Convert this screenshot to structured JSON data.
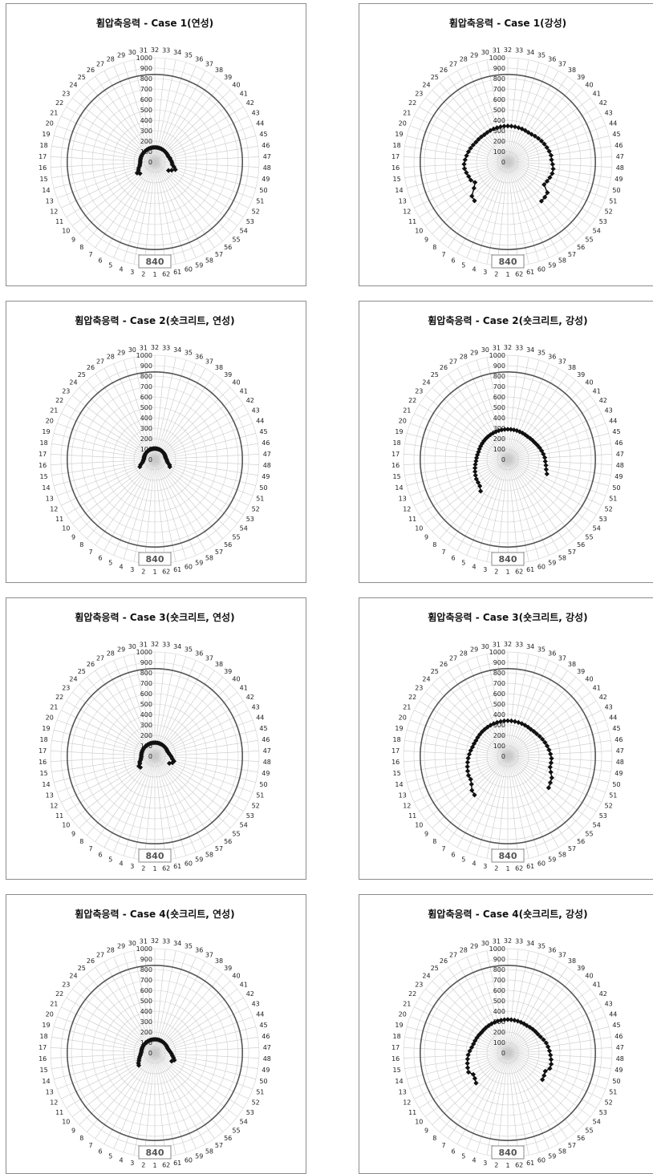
{
  "chart_data": [
    {
      "type": "radar",
      "title": "휨압축응력 - Case 1(연성)",
      "categories": [
        "1",
        "2",
        "3",
        "4",
        "5",
        "6",
        "7",
        "8",
        "9",
        "10",
        "11",
        "12",
        "13",
        "14",
        "15",
        "16",
        "17",
        "18",
        "19",
        "20",
        "21",
        "22",
        "23",
        "24",
        "25",
        "26",
        "27",
        "28",
        "29",
        "30",
        "31",
        "32",
        "33",
        "34",
        "35",
        "36",
        "37",
        "38",
        "39",
        "40",
        "41",
        "42",
        "43",
        "44",
        "45",
        "46",
        "47",
        "48",
        "49",
        "50",
        "51",
        "52",
        "53",
        "54",
        "55",
        "56",
        "57",
        "58",
        "59",
        "60",
        "61",
        "62"
      ],
      "ticks": [
        0,
        100,
        200,
        300,
        400,
        500,
        600,
        700,
        800,
        900,
        1000
      ],
      "rlim": [
        0,
        1000
      ],
      "limit_value": 840,
      "limit_label": "840",
      "values": [
        null,
        null,
        null,
        null,
        null,
        null,
        null,
        null,
        null,
        180,
        200,
        175,
        165,
        150,
        145,
        140,
        140,
        140,
        140,
        140,
        140,
        140,
        140,
        140,
        140,
        140,
        140,
        140,
        140,
        140,
        140,
        140,
        140,
        140,
        140,
        140,
        140,
        140,
        140,
        140,
        140,
        140,
        140,
        140,
        150,
        150,
        160,
        165,
        170,
        190,
        210,
        180,
        155,
        null,
        null,
        null,
        null,
        null,
        null,
        null,
        null,
        null
      ]
    },
    {
      "type": "radar",
      "title": "휨압축응력 - Case 1(강성)",
      "categories": [
        "1",
        "2",
        "3",
        "4",
        "5",
        "6",
        "7",
        "8",
        "9",
        "10",
        "11",
        "12",
        "13",
        "14",
        "15",
        "16",
        "17",
        "18",
        "19",
        "20",
        "21",
        "22",
        "23",
        "24",
        "25",
        "26",
        "27",
        "28",
        "29",
        "30",
        "31",
        "32",
        "33",
        "34",
        "35",
        "36",
        "37",
        "38",
        "39",
        "40",
        "41",
        "42",
        "43",
        "44",
        "45",
        "46",
        "47",
        "48",
        "49",
        "50",
        "51",
        "52",
        "53",
        "54",
        "55",
        "56",
        "57",
        "58",
        "59",
        "60",
        "61",
        "62"
      ],
      "ticks": [
        0,
        100,
        200,
        300,
        400,
        500,
        600,
        700,
        800,
        900,
        1000
      ],
      "rlim": [
        0,
        1000
      ],
      "limit_value": 840,
      "limit_label": "840",
      "values": [
        null,
        null,
        null,
        null,
        null,
        null,
        null,
        490,
        475,
        410,
        370,
        395,
        400,
        410,
        420,
        420,
        410,
        400,
        390,
        380,
        370,
        360,
        355,
        350,
        345,
        345,
        345,
        345,
        345,
        345,
        345,
        345,
        345,
        345,
        345,
        345,
        345,
        345,
        350,
        360,
        370,
        380,
        390,
        400,
        410,
        420,
        420,
        430,
        440,
        440,
        430,
        420,
        410,
        480,
        490,
        495,
        null,
        null,
        null,
        null,
        null,
        null
      ]
    },
    {
      "type": "radar",
      "title": "휨압축응력 - Case 2(숏크리트, 연성)",
      "categories": [
        "1",
        "2",
        "3",
        "4",
        "5",
        "6",
        "7",
        "8",
        "9",
        "10",
        "11",
        "12",
        "13",
        "14",
        "15",
        "16",
        "17",
        "18",
        "19",
        "20",
        "21",
        "22",
        "23",
        "24",
        "25",
        "26",
        "27",
        "28",
        "29",
        "30",
        "31",
        "32",
        "33",
        "34",
        "35",
        "36",
        "37",
        "38",
        "39",
        "40",
        "41",
        "42",
        "43",
        "44",
        "45",
        "46",
        "47",
        "48",
        "49",
        "50",
        "51",
        "52",
        "53",
        "54",
        "55",
        "56",
        "57",
        "58",
        "59",
        "60",
        "61",
        "62"
      ],
      "ticks": [
        0,
        100,
        200,
        300,
        400,
        500,
        600,
        700,
        800,
        900,
        1000
      ],
      "rlim": [
        0,
        1000
      ],
      "limit_value": 840,
      "limit_label": "840",
      "values": [
        null,
        null,
        null,
        null,
        null,
        null,
        null,
        null,
        null,
        null,
        null,
        160,
        145,
        125,
        115,
        110,
        105,
        105,
        105,
        105,
        105,
        105,
        105,
        105,
        105,
        105,
        105,
        105,
        105,
        105,
        105,
        105,
        105,
        105,
        105,
        105,
        105,
        105,
        105,
        105,
        105,
        105,
        105,
        105,
        105,
        105,
        110,
        115,
        120,
        130,
        150,
        160,
        null,
        null,
        null,
        null,
        null,
        null,
        null,
        null,
        null,
        null
      ]
    },
    {
      "type": "radar",
      "title": "휨압축응력 - Case 2(숏크리트, 강성)",
      "categories": [
        "1",
        "2",
        "3",
        "4",
        "5",
        "6",
        "7",
        "8",
        "9",
        "10",
        "11",
        "12",
        "13",
        "14",
        "15",
        "16",
        "17",
        "18",
        "19",
        "20",
        "21",
        "22",
        "23",
        "24",
        "25",
        "26",
        "27",
        "28",
        "29",
        "30",
        "31",
        "32",
        "33",
        "34",
        "35",
        "36",
        "37",
        "38",
        "39",
        "40",
        "41",
        "42",
        "43",
        "44",
        "45",
        "46",
        "47",
        "48",
        "49",
        "50",
        "51",
        "52",
        "53",
        "54",
        "55",
        "56",
        "57",
        "58",
        "59",
        "60",
        "61",
        "62"
      ],
      "ticks": [
        0,
        100,
        200,
        300,
        400,
        500,
        600,
        700,
        800,
        900,
        1000
      ],
      "rlim": [
        0,
        1000
      ],
      "limit_value": 840,
      "limit_label": "840",
      "values": [
        null,
        null,
        null,
        null,
        null,
        null,
        null,
        400,
        370,
        360,
        355,
        345,
        335,
        325,
        315,
        305,
        300,
        295,
        290,
        290,
        290,
        290,
        290,
        290,
        290,
        290,
        290,
        290,
        290,
        290,
        290,
        290,
        290,
        290,
        290,
        290,
        290,
        290,
        290,
        295,
        300,
        305,
        315,
        325,
        335,
        345,
        355,
        360,
        370,
        380,
        400,
        null,
        null,
        null,
        null,
        null,
        null,
        null,
        null,
        null,
        null,
        null
      ]
    },
    {
      "type": "radar",
      "title": "휨압축응력 - Case 3(숏크리트, 연성)",
      "categories": [
        "1",
        "2",
        "3",
        "4",
        "5",
        "6",
        "7",
        "8",
        "9",
        "10",
        "11",
        "12",
        "13",
        "14",
        "15",
        "16",
        "17",
        "18",
        "19",
        "20",
        "21",
        "22",
        "23",
        "24",
        "25",
        "26",
        "27",
        "28",
        "29",
        "30",
        "31",
        "32",
        "33",
        "34",
        "35",
        "36",
        "37",
        "38",
        "39",
        "40",
        "41",
        "42",
        "43",
        "44",
        "45",
        "46",
        "47",
        "48",
        "49",
        "50",
        "51",
        "52",
        "53",
        "54",
        "55",
        "56",
        "57",
        "58",
        "59",
        "60",
        "61",
        "62"
      ],
      "ticks": [
        0,
        100,
        200,
        300,
        400,
        500,
        600,
        700,
        800,
        900,
        1000
      ],
      "rlim": [
        0,
        1000
      ],
      "limit_value": 840,
      "limit_label": "840",
      "values": [
        null,
        null,
        null,
        null,
        null,
        null,
        null,
        null,
        null,
        175,
        180,
        160,
        155,
        140,
        135,
        130,
        130,
        130,
        130,
        130,
        130,
        130,
        130,
        130,
        130,
        130,
        130,
        130,
        130,
        130,
        130,
        130,
        130,
        130,
        130,
        130,
        130,
        130,
        130,
        130,
        130,
        130,
        130,
        130,
        135,
        140,
        150,
        160,
        170,
        190,
        180,
        155,
        null,
        null,
        null,
        null,
        null,
        null,
        null,
        null,
        null,
        null
      ]
    },
    {
      "type": "radar",
      "title": "휨압축응력 - Case 3(숏크리트, 강성)",
      "categories": [
        "1",
        "2",
        "3",
        "4",
        "5",
        "6",
        "7",
        "8",
        "9",
        "10",
        "11",
        "12",
        "13",
        "14",
        "15",
        "16",
        "17",
        "18",
        "19",
        "20",
        "21",
        "22",
        "23",
        "24",
        "25",
        "26",
        "27",
        "28",
        "29",
        "30",
        "31",
        "32",
        "33",
        "34",
        "35",
        "36",
        "37",
        "38",
        "39",
        "40",
        "41",
        "42",
        "43",
        "44",
        "45",
        "46",
        "47",
        "48",
        "49",
        "50",
        "51",
        "52",
        "53",
        "54",
        "55",
        "56",
        "57",
        "58",
        "59",
        "60",
        "61",
        "62"
      ],
      "ticks": [
        0,
        100,
        200,
        300,
        400,
        500,
        600,
        700,
        800,
        900,
        1000
      ],
      "rlim": [
        0,
        1000
      ],
      "limit_value": 840,
      "limit_label": "840",
      "values": [
        null,
        null,
        null,
        null,
        null,
        null,
        null,
        490,
        475,
        440,
        420,
        420,
        410,
        400,
        390,
        380,
        370,
        360,
        350,
        345,
        340,
        340,
        340,
        340,
        340,
        340,
        340,
        340,
        340,
        340,
        340,
        340,
        340,
        340,
        340,
        340,
        340,
        340,
        340,
        345,
        350,
        360,
        370,
        380,
        390,
        400,
        410,
        420,
        420,
        420,
        440,
        470,
        480,
        495,
        null,
        null,
        null,
        null,
        null,
        null,
        null,
        null
      ]
    },
    {
      "type": "radar",
      "title": "휨압축응력 - Case 4(숏크리트, 연성)",
      "categories": [
        "1",
        "2",
        "3",
        "4",
        "5",
        "6",
        "7",
        "8",
        "9",
        "10",
        "11",
        "12",
        "13",
        "14",
        "15",
        "16",
        "17",
        "18",
        "19",
        "20",
        "21",
        "22",
        "23",
        "24",
        "25",
        "26",
        "27",
        "28",
        "29",
        "30",
        "31",
        "32",
        "33",
        "34",
        "35",
        "36",
        "37",
        "38",
        "39",
        "40",
        "41",
        "42",
        "43",
        "44",
        "45",
        "46",
        "47",
        "48",
        "49",
        "50",
        "51",
        "52",
        "53",
        "54",
        "55",
        "56",
        "57",
        "58",
        "59",
        "60",
        "61",
        "62"
      ],
      "ticks": [
        0,
        100,
        200,
        300,
        400,
        500,
        600,
        700,
        800,
        900,
        1000
      ],
      "rlim": [
        0,
        1000
      ],
      "limit_value": 840,
      "limit_label": "840",
      "values": [
        null,
        null,
        null,
        null,
        null,
        null,
        null,
        null,
        null,
        195,
        185,
        170,
        160,
        150,
        140,
        135,
        130,
        130,
        130,
        130,
        130,
        130,
        130,
        130,
        130,
        130,
        130,
        130,
        130,
        130,
        130,
        130,
        130,
        130,
        130,
        130,
        130,
        130,
        130,
        130,
        130,
        130,
        130,
        130,
        135,
        140,
        150,
        160,
        170,
        185,
        200,
        180,
        null,
        null,
        null,
        null,
        null,
        null,
        null,
        null,
        null,
        null
      ]
    },
    {
      "type": "radar",
      "title": "휨압축응력 - Case 4(숏크리트, 강성)",
      "categories": [
        "1",
        "2",
        "3",
        "4",
        "5",
        "6",
        "7",
        "8",
        "9",
        "10",
        "11",
        "12",
        "13",
        "14",
        "15",
        "16",
        "17",
        "18",
        "19",
        "20",
        "21",
        "22",
        "23",
        "24",
        "25",
        "26",
        "27",
        "28",
        "29",
        "30",
        "31",
        "32",
        "33",
        "34",
        "35",
        "36",
        "37",
        "38",
        "39",
        "40",
        "41",
        "42",
        "43",
        "44",
        "45",
        "46",
        "47",
        "48",
        "49",
        "50",
        "51",
        "52",
        "53",
        "54",
        "55",
        "56",
        "57",
        "58",
        "59",
        "60",
        "61",
        "62"
      ],
      "ticks": [
        0,
        100,
        200,
        300,
        400,
        500,
        600,
        700,
        800,
        900,
        1000
      ],
      "rlim": [
        0,
        1000
      ],
      "limit_value": 840,
      "limit_label": "840",
      "values": [
        null,
        null,
        null,
        null,
        null,
        null,
        null,
        null,
        420,
        400,
        390,
        420,
        410,
        400,
        390,
        380,
        365,
        350,
        340,
        335,
        330,
        325,
        320,
        320,
        320,
        320,
        320,
        320,
        320,
        320,
        320,
        320,
        320,
        320,
        320,
        320,
        320,
        320,
        325,
        330,
        335,
        340,
        350,
        365,
        380,
        390,
        400,
        410,
        420,
        430,
        430,
        400,
        410,
        420,
        null,
        null,
        null,
        null,
        null,
        null,
        null,
        null
      ]
    }
  ]
}
